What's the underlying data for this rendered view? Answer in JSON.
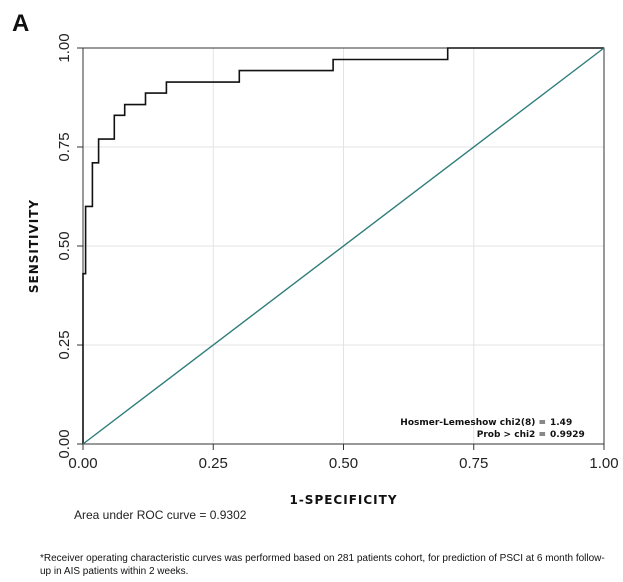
{
  "panel_label": "A",
  "chart_data": {
    "type": "line",
    "xlabel": "1-SPECIFICITY",
    "ylabel": "SENSITIVITY",
    "xlim": [
      0,
      1
    ],
    "ylim": [
      0,
      1
    ],
    "x_ticks": [
      "0.00",
      "0.25",
      "0.50",
      "0.75",
      "1.00"
    ],
    "y_ticks": [
      "0.00",
      "0.25",
      "0.50",
      "0.75",
      "1.00"
    ],
    "grid": true,
    "series": [
      {
        "color": "#111111",
        "x": [
          0,
          0,
          0.005,
          0.005,
          0.018,
          0.018,
          0.03,
          0.03,
          0.045,
          0.045,
          0.06,
          0.06,
          0.08,
          0.08,
          0.095,
          0.095,
          0.12,
          0.12,
          0.16,
          0.16,
          0.3,
          0.3,
          0.48,
          0.48,
          0.7,
          0.7,
          1.0
        ],
        "y": [
          0,
          0.43,
          0.43,
          0.6,
          0.6,
          0.71,
          0.71,
          0.77,
          0.77,
          0.77,
          0.77,
          0.83,
          0.83,
          0.857,
          0.857,
          0.857,
          0.857,
          0.886,
          0.886,
          0.914,
          0.914,
          0.943,
          0.943,
          0.971,
          0.971,
          1.0,
          1.0
        ]
      },
      {
        "color": "#2e7d7a",
        "x": [
          0,
          1
        ],
        "y": [
          0,
          1
        ]
      }
    ],
    "annotations": {
      "hl_label": "Hosmer-Lemeshow chi2(8) =",
      "hl_value": "1.49",
      "prob_label": "Prob > chi2 =",
      "prob_value": "0.9929"
    }
  },
  "auc_text": "Area under ROC curve = 0.9302",
  "footnote": "*Receiver operating characteristic curves was performed based on 281 patients cohort, for prediction of PSCI at 6 month follow-up in AIS patients within 2 weeks."
}
